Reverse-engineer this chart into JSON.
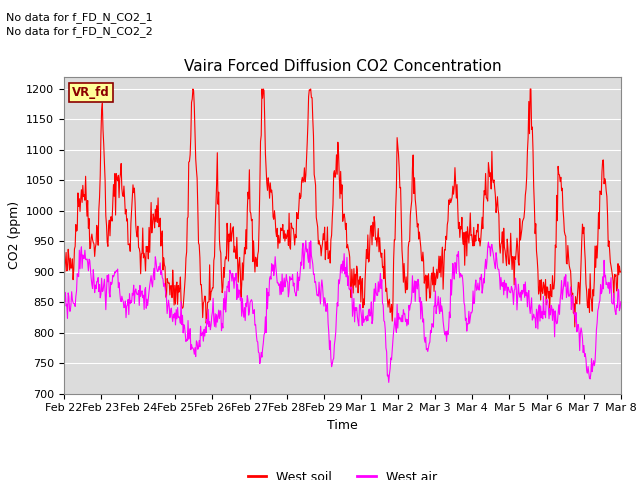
{
  "title": "Vaira Forced Diffusion CO2 Concentration",
  "xlabel": "Time",
  "ylabel": "CO2 (ppm)",
  "ylim": [
    700,
    1220
  ],
  "yticks": [
    700,
    750,
    800,
    850,
    900,
    950,
    1000,
    1050,
    1100,
    1150,
    1200
  ],
  "annotation_lines": [
    "No data for f_FD_N_CO2_1",
    "No data for f_FD_N_CO2_2"
  ],
  "legend_label_fd": "VR_fd",
  "legend_label_soil": "West soil",
  "legend_label_air": "West air",
  "soil_color": "#ff0000",
  "air_color": "#ff00ff",
  "fig_bg_color": "#ffffff",
  "plot_bg_color": "#dcdcdc",
  "fd_box_color": "#ffff99",
  "fd_text_color": "#8b0000",
  "n_points": 800,
  "xtick_labels": [
    "Feb 22",
    "Feb 23",
    "Feb 24",
    "Feb 25",
    "Feb 26",
    "Feb 27",
    "Feb 28",
    "Feb 29",
    "Mar 1",
    "Mar 2",
    "Mar 3",
    "Mar 4",
    "Mar 5",
    "Mar 6",
    "Mar 7",
    "Mar 8"
  ],
  "title_fontsize": 11,
  "axis_fontsize": 9,
  "tick_fontsize": 8,
  "annot_fontsize": 8,
  "legend_fontsize": 9,
  "linewidth": 0.8
}
